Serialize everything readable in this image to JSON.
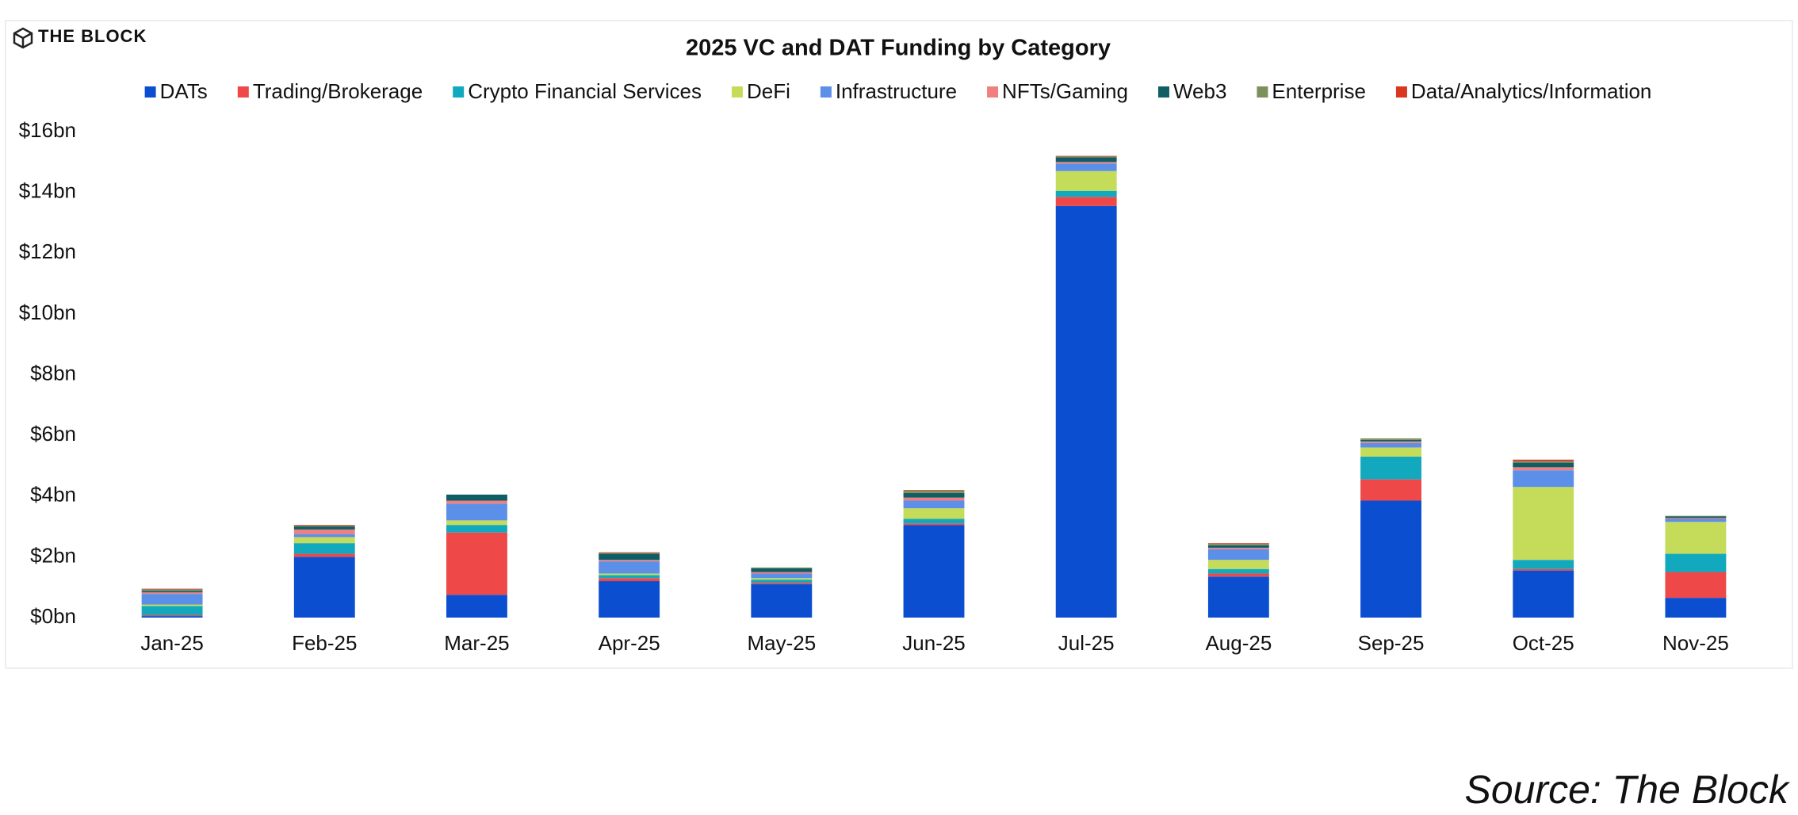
{
  "logo": "THE BLOCK",
  "source": "Source: The Block",
  "chart_data": {
    "type": "stacked_bar",
    "title": "2025 VC and DAT Funding by Category",
    "categories": [
      "Jan-25",
      "Feb-25",
      "Mar-25",
      "Apr-25",
      "May-25",
      "Jun-25",
      "Jul-25",
      "Aug-25",
      "Sep-25",
      "Oct-25",
      "Nov-25"
    ],
    "series": [
      {
        "name": "DATs",
        "color": "#0b4fd0",
        "values": [
          0.05,
          2.0,
          0.75,
          1.2,
          1.1,
          3.05,
          13.55,
          1.35,
          3.85,
          1.55,
          0.65
        ]
      },
      {
        "name": "Trading/Brokerage",
        "color": "#ef4848",
        "values": [
          0.03,
          0.1,
          2.05,
          0.1,
          0.05,
          0.05,
          0.3,
          0.1,
          0.7,
          0.05,
          0.85
        ]
      },
      {
        "name": "Crypto Financial Services",
        "color": "#12a9bf",
        "values": [
          0.3,
          0.35,
          0.25,
          0.1,
          0.1,
          0.15,
          0.2,
          0.15,
          0.75,
          0.3,
          0.6
        ]
      },
      {
        "name": "DeFi",
        "color": "#c5dc5a",
        "values": [
          0.05,
          0.2,
          0.15,
          0.05,
          0.05,
          0.35,
          0.65,
          0.3,
          0.3,
          2.4,
          1.05
        ]
      },
      {
        "name": "Infrastructure",
        "color": "#5b8fe8",
        "values": [
          0.35,
          0.1,
          0.55,
          0.4,
          0.15,
          0.25,
          0.25,
          0.35,
          0.15,
          0.55,
          0.1
        ]
      },
      {
        "name": "NFTs/Gaming",
        "color": "#f08080",
        "values": [
          0.05,
          0.15,
          0.1,
          0.05,
          0.05,
          0.1,
          0.05,
          0.05,
          0.05,
          0.1,
          0.03
        ]
      },
      {
        "name": "Web3",
        "color": "#0f5e66",
        "values": [
          0.05,
          0.1,
          0.2,
          0.2,
          0.12,
          0.15,
          0.15,
          0.08,
          0.05,
          0.15,
          0.05
        ]
      },
      {
        "name": "Enterprise",
        "color": "#7e8f5e",
        "values": [
          0.05,
          0.03,
          0,
          0.03,
          0.03,
          0.08,
          0.03,
          0.05,
          0.05,
          0.05,
          0.02
        ]
      },
      {
        "name": "Data/Analytics/Information",
        "color": "#d9381e",
        "values": [
          0.02,
          0.02,
          0,
          0.02,
          0,
          0.02,
          0.02,
          0.02,
          0,
          0.05,
          0
        ]
      }
    ],
    "ylim": [
      0,
      16
    ],
    "yticks": [
      {
        "value": 0,
        "label": "$0bn"
      },
      {
        "value": 2,
        "label": "$2bn"
      },
      {
        "value": 4,
        "label": "$4bn"
      },
      {
        "value": 6,
        "label": "$6bn"
      },
      {
        "value": 8,
        "label": "$8bn"
      },
      {
        "value": 10,
        "label": "$10bn"
      },
      {
        "value": 12,
        "label": "$12bn"
      },
      {
        "value": 14,
        "label": "$14bn"
      },
      {
        "value": 16,
        "label": "$16bn"
      }
    ],
    "grid": false
  }
}
